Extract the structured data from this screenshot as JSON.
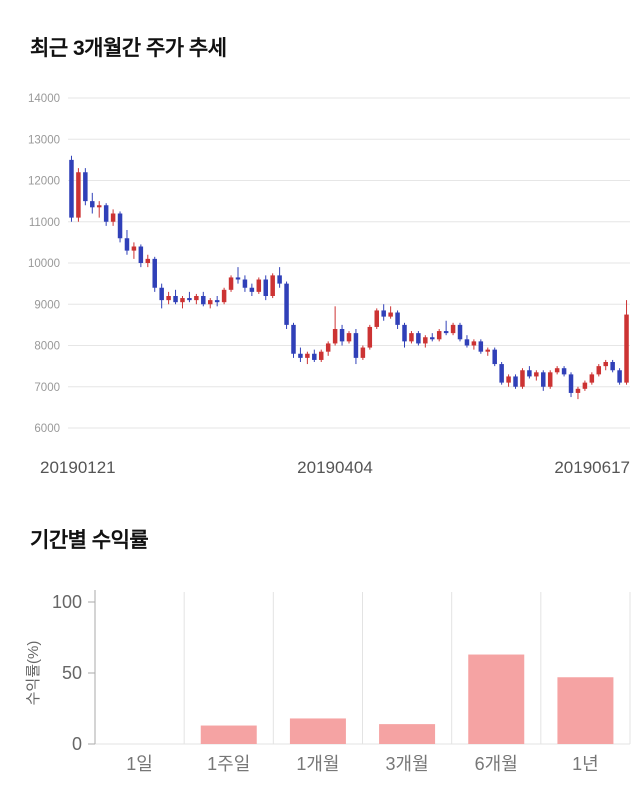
{
  "page": {
    "background": "#ffffff"
  },
  "chart_data": [
    {
      "type": "candlestick",
      "title": "최근 3개월간 주가 추세",
      "y_axis": {
        "min": 6000,
        "max": 14000,
        "step": 1000
      },
      "x_labels": [
        "20190121",
        "20190404",
        "20190617"
      ],
      "legend": "none",
      "grid": "horizontal",
      "colors": {
        "up": "#cc3333",
        "down": "#3040b8",
        "grid": "#e6e6e6",
        "axis_text": "#999999",
        "x_label_text": "#555555"
      },
      "candles_format": "open,high,low,close",
      "candles": [
        [
          12500,
          12600,
          11000,
          11100
        ],
        [
          11100,
          12300,
          11000,
          12200
        ],
        [
          12200,
          12300,
          11400,
          11500
        ],
        [
          11500,
          11700,
          11200,
          11350
        ],
        [
          11350,
          11500,
          11100,
          11400
        ],
        [
          11400,
          11450,
          10900,
          11000
        ],
        [
          11000,
          11300,
          10900,
          11200
        ],
        [
          11200,
          11250,
          10500,
          10600
        ],
        [
          10600,
          10800,
          10200,
          10300
        ],
        [
          10300,
          10500,
          10100,
          10400
        ],
        [
          10400,
          10450,
          9900,
          10000
        ],
        [
          10000,
          10200,
          9900,
          10100
        ],
        [
          10100,
          10150,
          9300,
          9400
        ],
        [
          9400,
          9500,
          8900,
          9100
        ],
        [
          9100,
          9300,
          9000,
          9200
        ],
        [
          9200,
          9350,
          9000,
          9050
        ],
        [
          9050,
          9200,
          8900,
          9150
        ],
        [
          9150,
          9300,
          9050,
          9100
        ],
        [
          9100,
          9250,
          9000,
          9200
        ],
        [
          9200,
          9300,
          8950,
          9000
        ],
        [
          9000,
          9150,
          8900,
          9100
        ],
        [
          9100,
          9200,
          8950,
          9050
        ],
        [
          9050,
          9400,
          9000,
          9350
        ],
        [
          9350,
          9700,
          9300,
          9650
        ],
        [
          9650,
          9900,
          9500,
          9600
        ],
        [
          9600,
          9700,
          9300,
          9400
        ],
        [
          9400,
          9500,
          9200,
          9300
        ],
        [
          9300,
          9650,
          9250,
          9600
        ],
        [
          9600,
          9700,
          9100,
          9200
        ],
        [
          9200,
          9750,
          9150,
          9700
        ],
        [
          9700,
          9900,
          9400,
          9500
        ],
        [
          9500,
          9550,
          8400,
          8500
        ],
        [
          8500,
          8550,
          7700,
          7800
        ],
        [
          7800,
          7950,
          7600,
          7700
        ],
        [
          7700,
          7850,
          7550,
          7800
        ],
        [
          7800,
          7900,
          7600,
          7650
        ],
        [
          7650,
          7900,
          7600,
          7850
        ],
        [
          7850,
          8100,
          7750,
          8050
        ],
        [
          8050,
          8950,
          8000,
          8400
        ],
        [
          8400,
          8500,
          8000,
          8100
        ],
        [
          8100,
          8350,
          8050,
          8300
        ],
        [
          8300,
          8400,
          7550,
          7700
        ],
        [
          7700,
          8000,
          7650,
          7950
        ],
        [
          7950,
          8500,
          7900,
          8450
        ],
        [
          8450,
          8900,
          8400,
          8850
        ],
        [
          8850,
          9000,
          8600,
          8700
        ],
        [
          8700,
          8950,
          8650,
          8800
        ],
        [
          8800,
          8850,
          8400,
          8500
        ],
        [
          8500,
          8550,
          7950,
          8100
        ],
        [
          8100,
          8350,
          8050,
          8300
        ],
        [
          8300,
          8350,
          8000,
          8050
        ],
        [
          8050,
          8250,
          7950,
          8200
        ],
        [
          8200,
          8300,
          8100,
          8150
        ],
        [
          8150,
          8400,
          8100,
          8350
        ],
        [
          8350,
          8600,
          8250,
          8300
        ],
        [
          8300,
          8550,
          8250,
          8500
        ],
        [
          8500,
          8550,
          8100,
          8150
        ],
        [
          8150,
          8250,
          7950,
          8000
        ],
        [
          8000,
          8150,
          7900,
          8100
        ],
        [
          8100,
          8150,
          7800,
          7850
        ],
        [
          7850,
          7950,
          7750,
          7900
        ],
        [
          7900,
          7950,
          7500,
          7550
        ],
        [
          7550,
          7600,
          7050,
          7100
        ],
        [
          7100,
          7300,
          7000,
          7250
        ],
        [
          7250,
          7300,
          6950,
          7000
        ],
        [
          7000,
          7450,
          6950,
          7400
        ],
        [
          7400,
          7500,
          7200,
          7250
        ],
        [
          7250,
          7400,
          7150,
          7350
        ],
        [
          7350,
          7400,
          6900,
          7000
        ],
        [
          7000,
          7400,
          6950,
          7350
        ],
        [
          7350,
          7500,
          7300,
          7450
        ],
        [
          7450,
          7500,
          7250,
          7300
        ],
        [
          7300,
          7350,
          6750,
          6850
        ],
        [
          6850,
          7000,
          6700,
          6950
        ],
        [
          6950,
          7150,
          6900,
          7100
        ],
        [
          7100,
          7350,
          7050,
          7300
        ],
        [
          7300,
          7550,
          7250,
          7500
        ],
        [
          7500,
          7650,
          7400,
          7600
        ],
        [
          7600,
          7650,
          7350,
          7400
        ],
        [
          7400,
          7450,
          7050,
          7100
        ],
        [
          7100,
          9100,
          7050,
          8750
        ]
      ]
    },
    {
      "type": "bar",
      "title": "기간별 수익률",
      "ylabel": "수익률(%)",
      "ylim": [
        0,
        100
      ],
      "y_ticks": [
        0,
        50,
        100
      ],
      "categories": [
        "1일",
        "1주일",
        "1개월",
        "3개월",
        "6개월",
        "1년"
      ],
      "values": [
        0,
        13,
        18,
        14,
        63,
        47
      ],
      "grid": "vertical",
      "legend": "none",
      "colors": {
        "bar": "#f5a3a3",
        "axis": "#aaaaaa",
        "grid": "#e3e3e3",
        "tick_text": "#666666",
        "category_text": "#777777",
        "ylabel_text": "#666666"
      }
    }
  ]
}
